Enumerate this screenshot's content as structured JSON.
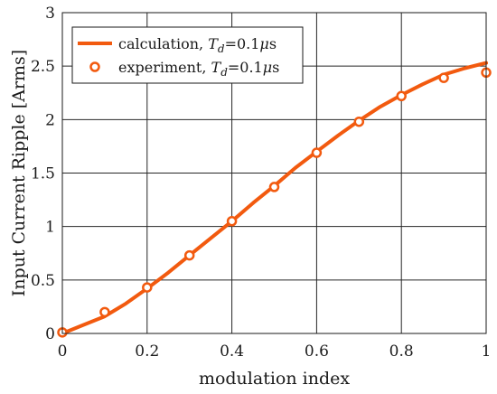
{
  "chart_data": {
    "type": "line",
    "title": "",
    "xlabel": "modulation index",
    "ylabel": "Input Current Ripple [Arms]",
    "xlim": [
      0,
      1
    ],
    "ylim": [
      0,
      3
    ],
    "xticks": [
      0,
      0.2,
      0.4,
      0.6,
      0.8,
      1
    ],
    "xtick_labels": [
      "0",
      "0.2",
      "0.4",
      "0.6",
      "0.8",
      "1"
    ],
    "yticks": [
      0,
      0.5,
      1,
      1.5,
      2,
      2.5,
      3
    ],
    "ytick_labels": [
      "0",
      "0.5",
      "1",
      "1.5",
      "2",
      "2.5",
      "3"
    ],
    "grid": true,
    "legend_position": "top-left",
    "accent_color": "#f25a0f",
    "series": [
      {
        "name": "calculation, T_d=0.1μs",
        "legend_prefix": "calculation, ",
        "legend_var": "T",
        "legend_sub": "d",
        "legend_suffix": "=0.1",
        "legend_mu": "μ",
        "legend_unit": "s",
        "style": "line",
        "x": [
          0,
          0.05,
          0.1,
          0.15,
          0.2,
          0.25,
          0.3,
          0.35,
          0.4,
          0.45,
          0.5,
          0.55,
          0.6,
          0.65,
          0.7,
          0.75,
          0.8,
          0.85,
          0.9,
          0.95,
          1.0
        ],
        "y": [
          0,
          0.08,
          0.16,
          0.28,
          0.42,
          0.57,
          0.73,
          0.89,
          1.05,
          1.22,
          1.38,
          1.55,
          1.7,
          1.85,
          1.99,
          2.12,
          2.23,
          2.33,
          2.42,
          2.48,
          2.53
        ]
      },
      {
        "name": "experiment, T_d=0.1μs",
        "legend_prefix": "experiment, ",
        "legend_var": "T",
        "legend_sub": "d",
        "legend_suffix": "=0.1",
        "legend_mu": "μ",
        "legend_unit": "s",
        "style": "markers",
        "x": [
          0,
          0.1,
          0.2,
          0.3,
          0.4,
          0.5,
          0.6,
          0.7,
          0.8,
          0.9,
          1.0
        ],
        "y": [
          0.01,
          0.2,
          0.43,
          0.73,
          1.05,
          1.37,
          1.69,
          1.98,
          2.22,
          2.39,
          2.44
        ]
      }
    ]
  }
}
